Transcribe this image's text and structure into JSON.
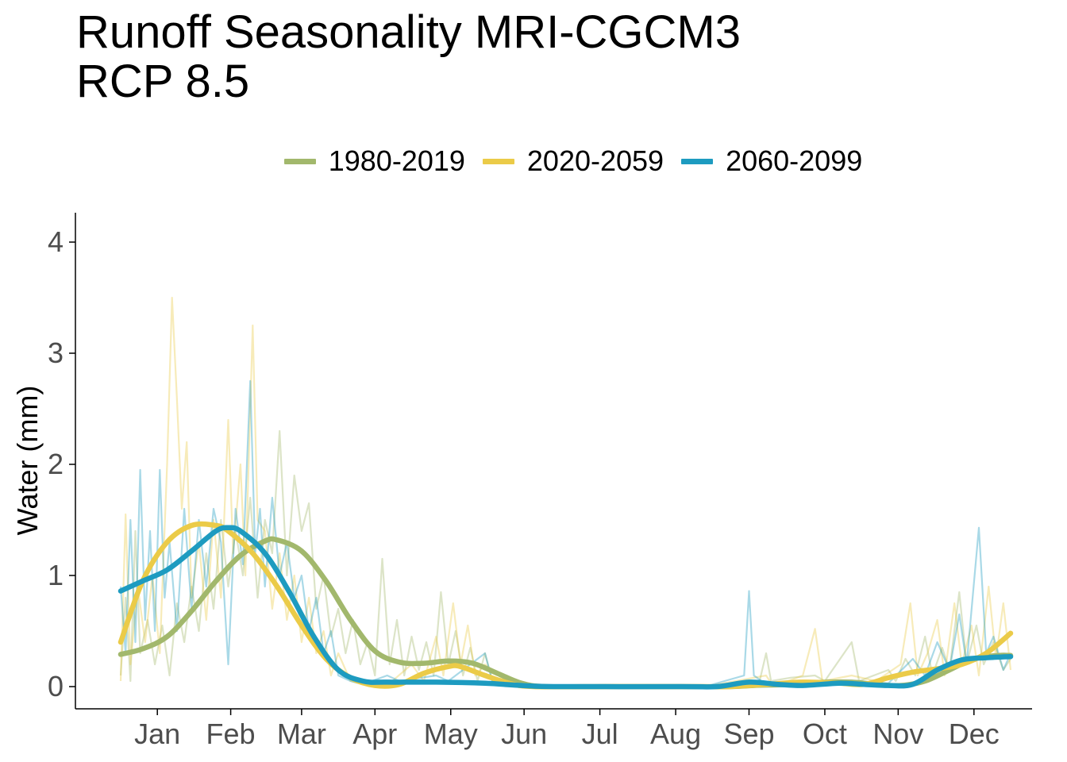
{
  "chart_data": {
    "type": "line",
    "title_lines": [
      "Runoff Seasonality MRI-CGCM3",
      "RCP 8.5"
    ],
    "xlabel": "",
    "ylabel": "Water (mm)",
    "x_unit": "day of year",
    "xlim": [
      1,
      365
    ],
    "ylim": [
      0,
      4
    ],
    "yticks": [
      0,
      1,
      2,
      3,
      4
    ],
    "ytick_labels": [
      "0",
      "1",
      "2",
      "3",
      "4"
    ],
    "month_ticks": [
      {
        "label": "Jan",
        "day": 16
      },
      {
        "label": "Feb",
        "day": 46
      },
      {
        "label": "Mar",
        "day": 75
      },
      {
        "label": "Apr",
        "day": 105
      },
      {
        "label": "May",
        "day": 136
      },
      {
        "label": "Jun",
        "day": 166
      },
      {
        "label": "Jul",
        "day": 197
      },
      {
        "label": "Aug",
        "day": 228
      },
      {
        "label": "Sep",
        "day": 258
      },
      {
        "label": "Oct",
        "day": 289
      },
      {
        "label": "Nov",
        "day": 319
      },
      {
        "label": "Dec",
        "day": 350
      }
    ],
    "grid": false,
    "legend_position": "top",
    "series": [
      {
        "name": "1980-2019",
        "color": "#a2b86c",
        "smooth": [
          [
            1,
            0.29
          ],
          [
            10,
            0.34
          ],
          [
            20,
            0.45
          ],
          [
            30,
            0.68
          ],
          [
            40,
            0.95
          ],
          [
            50,
            1.18
          ],
          [
            60,
            1.31
          ],
          [
            65,
            1.32
          ],
          [
            75,
            1.22
          ],
          [
            85,
            0.95
          ],
          [
            95,
            0.6
          ],
          [
            105,
            0.32
          ],
          [
            115,
            0.22
          ],
          [
            125,
            0.21
          ],
          [
            135,
            0.23
          ],
          [
            145,
            0.21
          ],
          [
            155,
            0.12
          ],
          [
            165,
            0.03
          ],
          [
            175,
            0.0
          ],
          [
            200,
            0.0
          ],
          [
            230,
            0.0
          ],
          [
            250,
            0.0
          ],
          [
            260,
            0.01
          ],
          [
            275,
            0.02
          ],
          [
            290,
            0.04
          ],
          [
            300,
            0.04
          ],
          [
            310,
            0.02
          ],
          [
            320,
            0.01
          ],
          [
            330,
            0.05
          ],
          [
            340,
            0.15
          ],
          [
            350,
            0.25
          ],
          [
            360,
            0.28
          ],
          [
            365,
            0.28
          ]
        ],
        "daily": [
          [
            1,
            0.1
          ],
          [
            3,
            0.8
          ],
          [
            5,
            0.05
          ],
          [
            7,
            1.4
          ],
          [
            9,
            0.3
          ],
          [
            12,
            0.6
          ],
          [
            15,
            0.2
          ],
          [
            18,
            0.55
          ],
          [
            21,
            0.1
          ],
          [
            24,
            0.75
          ],
          [
            27,
            0.4
          ],
          [
            30,
            0.9
          ],
          [
            33,
            0.5
          ],
          [
            36,
            1.2
          ],
          [
            39,
            0.7
          ],
          [
            42,
            1.5
          ],
          [
            45,
            0.9
          ],
          [
            48,
            1.4
          ],
          [
            51,
            1.0
          ],
          [
            54,
            1.7
          ],
          [
            57,
            0.8
          ],
          [
            60,
            1.5
          ],
          [
            63,
            1.2
          ],
          [
            66,
            2.3
          ],
          [
            69,
            1.0
          ],
          [
            72,
            1.9
          ],
          [
            75,
            1.4
          ],
          [
            78,
            1.65
          ],
          [
            81,
            0.7
          ],
          [
            84,
            1.0
          ],
          [
            87,
            0.45
          ],
          [
            90,
            0.7
          ],
          [
            93,
            0.3
          ],
          [
            96,
            0.6
          ],
          [
            99,
            0.2
          ],
          [
            102,
            0.4
          ],
          [
            105,
            0.1
          ],
          [
            108,
            1.15
          ],
          [
            111,
            0.2
          ],
          [
            114,
            0.6
          ],
          [
            117,
            0.1
          ],
          [
            120,
            0.45
          ],
          [
            123,
            0.15
          ],
          [
            126,
            0.4
          ],
          [
            129,
            0.1
          ],
          [
            132,
            0.85
          ],
          [
            135,
            0.2
          ],
          [
            138,
            0.5
          ],
          [
            141,
            0.1
          ],
          [
            144,
            0.35
          ],
          [
            147,
            0.05
          ],
          [
            150,
            0.3
          ],
          [
            153,
            0.05
          ],
          [
            160,
            0.08
          ],
          [
            170,
            0.01
          ],
          [
            200,
            0.0
          ],
          [
            240,
            0.0
          ],
          [
            262,
            0.02
          ],
          [
            265,
            0.3
          ],
          [
            267,
            0.05
          ],
          [
            275,
            0.08
          ],
          [
            285,
            0.1
          ],
          [
            289,
            0.05
          ],
          [
            300,
            0.4
          ],
          [
            303,
            0.05
          ],
          [
            315,
            0.15
          ],
          [
            318,
            0.05
          ],
          [
            322,
            0.25
          ],
          [
            326,
            0.1
          ],
          [
            330,
            0.45
          ],
          [
            333,
            0.1
          ],
          [
            337,
            0.35
          ],
          [
            340,
            0.15
          ],
          [
            344,
            0.85
          ],
          [
            347,
            0.2
          ],
          [
            351,
            0.55
          ],
          [
            354,
            0.2
          ],
          [
            358,
            0.4
          ],
          [
            362,
            0.15
          ],
          [
            365,
            0.25
          ]
        ]
      },
      {
        "name": "2020-2059",
        "color": "#ebcb48",
        "smooth": [
          [
            1,
            0.4
          ],
          [
            10,
            0.95
          ],
          [
            20,
            1.3
          ],
          [
            30,
            1.45
          ],
          [
            40,
            1.45
          ],
          [
            45,
            1.4
          ],
          [
            55,
            1.2
          ],
          [
            65,
            0.9
          ],
          [
            75,
            0.55
          ],
          [
            85,
            0.25
          ],
          [
            95,
            0.08
          ],
          [
            105,
            0.01
          ],
          [
            115,
            0.02
          ],
          [
            125,
            0.12
          ],
          [
            135,
            0.18
          ],
          [
            140,
            0.18
          ],
          [
            150,
            0.1
          ],
          [
            160,
            0.03
          ],
          [
            170,
            0.0
          ],
          [
            200,
            0.0
          ],
          [
            230,
            0.0
          ],
          [
            250,
            0.0
          ],
          [
            265,
            0.02
          ],
          [
            280,
            0.04
          ],
          [
            295,
            0.03
          ],
          [
            305,
            0.02
          ],
          [
            315,
            0.08
          ],
          [
            325,
            0.13
          ],
          [
            335,
            0.16
          ],
          [
            345,
            0.2
          ],
          [
            355,
            0.3
          ],
          [
            365,
            0.48
          ]
        ],
        "daily": [
          [
            1,
            0.05
          ],
          [
            3,
            1.55
          ],
          [
            5,
            0.2
          ],
          [
            8,
            0.9
          ],
          [
            11,
            0.4
          ],
          [
            14,
            1.0
          ],
          [
            17,
            0.3
          ],
          [
            20,
            2.0
          ],
          [
            22,
            3.5
          ],
          [
            24,
            2.6
          ],
          [
            26,
            1.6
          ],
          [
            28,
            2.2
          ],
          [
            30,
            0.8
          ],
          [
            33,
            1.3
          ],
          [
            36,
            0.6
          ],
          [
            39,
            1.5
          ],
          [
            42,
            0.8
          ],
          [
            45,
            2.4
          ],
          [
            47,
            1.2
          ],
          [
            50,
            2.0
          ],
          [
            52,
            1.0
          ],
          [
            55,
            3.25
          ],
          [
            57,
            1.5
          ],
          [
            60,
            1.4
          ],
          [
            63,
            0.7
          ],
          [
            66,
            1.2
          ],
          [
            69,
            0.6
          ],
          [
            72,
            1.0
          ],
          [
            75,
            0.4
          ],
          [
            78,
            0.8
          ],
          [
            81,
            0.3
          ],
          [
            84,
            0.5
          ],
          [
            87,
            0.1
          ],
          [
            90,
            0.3
          ],
          [
            95,
            0.05
          ],
          [
            100,
            0.02
          ],
          [
            110,
            0.01
          ],
          [
            120,
            0.2
          ],
          [
            125,
            0.05
          ],
          [
            130,
            0.45
          ],
          [
            133,
            0.1
          ],
          [
            137,
            0.75
          ],
          [
            140,
            0.2
          ],
          [
            143,
            0.55
          ],
          [
            146,
            0.1
          ],
          [
            150,
            0.2
          ],
          [
            160,
            0.02
          ],
          [
            200,
            0.0
          ],
          [
            240,
            0.0
          ],
          [
            265,
            0.1
          ],
          [
            268,
            0.0
          ],
          [
            280,
            0.1
          ],
          [
            285,
            0.52
          ],
          [
            288,
            0.05
          ],
          [
            300,
            0.1
          ],
          [
            310,
            0.05
          ],
          [
            320,
            0.2
          ],
          [
            324,
            0.75
          ],
          [
            327,
            0.1
          ],
          [
            331,
            0.3
          ],
          [
            335,
            0.6
          ],
          [
            338,
            0.1
          ],
          [
            342,
            0.75
          ],
          [
            345,
            0.2
          ],
          [
            349,
            0.55
          ],
          [
            352,
            0.1
          ],
          [
            356,
            0.9
          ],
          [
            359,
            0.25
          ],
          [
            362,
            0.75
          ],
          [
            365,
            0.15
          ]
        ]
      },
      {
        "name": "2060-2099",
        "color": "#1d9bc0",
        "smooth": [
          [
            1,
            0.86
          ],
          [
            10,
            0.95
          ],
          [
            20,
            1.05
          ],
          [
            30,
            1.22
          ],
          [
            40,
            1.4
          ],
          [
            45,
            1.43
          ],
          [
            50,
            1.4
          ],
          [
            60,
            1.2
          ],
          [
            70,
            0.85
          ],
          [
            80,
            0.45
          ],
          [
            90,
            0.15
          ],
          [
            100,
            0.05
          ],
          [
            110,
            0.04
          ],
          [
            130,
            0.04
          ],
          [
            150,
            0.03
          ],
          [
            165,
            0.01
          ],
          [
            180,
            0.0
          ],
          [
            230,
            0.0
          ],
          [
            245,
            0.0
          ],
          [
            258,
            0.04
          ],
          [
            270,
            0.02
          ],
          [
            280,
            0.01
          ],
          [
            295,
            0.03
          ],
          [
            305,
            0.02
          ],
          [
            315,
            0.01
          ],
          [
            325,
            0.02
          ],
          [
            335,
            0.15
          ],
          [
            345,
            0.24
          ],
          [
            355,
            0.26
          ],
          [
            365,
            0.27
          ]
        ],
        "daily": [
          [
            1,
            0.9
          ],
          [
            3,
            0.3
          ],
          [
            5,
            1.5
          ],
          [
            7,
            0.4
          ],
          [
            9,
            1.95
          ],
          [
            11,
            0.6
          ],
          [
            13,
            1.4
          ],
          [
            15,
            0.5
          ],
          [
            17,
            1.95
          ],
          [
            19,
            0.8
          ],
          [
            21,
            1.3
          ],
          [
            24,
            0.5
          ],
          [
            27,
            1.6
          ],
          [
            30,
            0.7
          ],
          [
            33,
            1.5
          ],
          [
            36,
            0.9
          ],
          [
            39,
            1.6
          ],
          [
            42,
            1.3
          ],
          [
            45,
            0.2
          ],
          [
            48,
            1.6
          ],
          [
            51,
            1.1
          ],
          [
            54,
            2.75
          ],
          [
            56,
            1.2
          ],
          [
            58,
            1.6
          ],
          [
            60,
            0.9
          ],
          [
            63,
            1.7
          ],
          [
            66,
            1.0
          ],
          [
            69,
            1.3
          ],
          [
            72,
            0.8
          ],
          [
            75,
            1.0
          ],
          [
            78,
            0.5
          ],
          [
            81,
            0.8
          ],
          [
            84,
            0.3
          ],
          [
            87,
            0.5
          ],
          [
            90,
            0.1
          ],
          [
            95,
            0.05
          ],
          [
            100,
            0.02
          ],
          [
            110,
            0.1
          ],
          [
            115,
            0.05
          ],
          [
            130,
            0.1
          ],
          [
            135,
            0.05
          ],
          [
            150,
            0.3
          ],
          [
            153,
            0.05
          ],
          [
            160,
            0.02
          ],
          [
            200,
            0.0
          ],
          [
            240,
            0.0
          ],
          [
            256,
            0.1
          ],
          [
            258,
            0.86
          ],
          [
            260,
            0.1
          ],
          [
            265,
            0.02
          ],
          [
            300,
            0.05
          ],
          [
            315,
            0.03
          ],
          [
            325,
            0.25
          ],
          [
            330,
            0.1
          ],
          [
            335,
            0.4
          ],
          [
            340,
            0.15
          ],
          [
            344,
            0.65
          ],
          [
            347,
            0.2
          ],
          [
            352,
            1.43
          ],
          [
            355,
            0.3
          ],
          [
            358,
            0.45
          ],
          [
            362,
            0.15
          ],
          [
            365,
            0.3
          ]
        ]
      }
    ]
  }
}
